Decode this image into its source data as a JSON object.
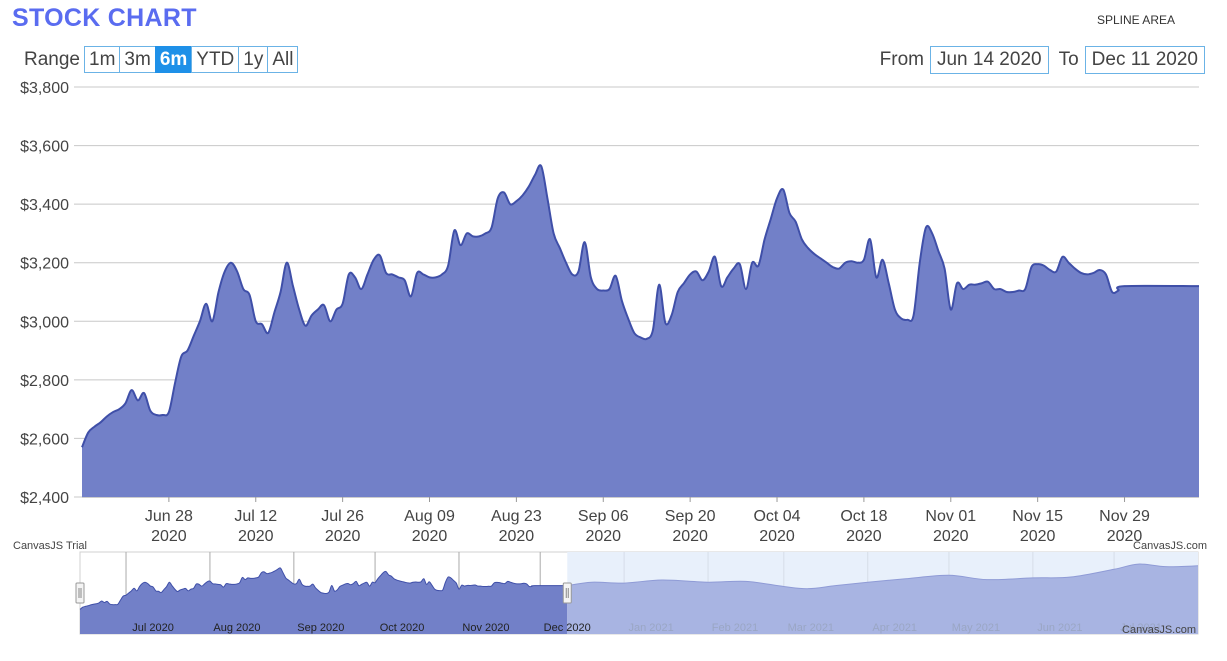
{
  "title": "STOCK CHART",
  "chart_type_label": "SPLINE AREA",
  "range": {
    "label": "Range",
    "buttons": [
      "1m",
      "3m",
      "6m",
      "YTD",
      "1y",
      "All"
    ],
    "active": "6m"
  },
  "date_range": {
    "from_label": "From",
    "from_value": "Jun 14 2020",
    "to_label": "To",
    "to_value": "Dec 11 2020"
  },
  "credits": {
    "trial": "CanvasJS Trial",
    "site": "CanvasJS.com"
  },
  "colors": {
    "title": "#5a6cf0",
    "area_fill": "#7280c8",
    "area_line": "#3f4fa8",
    "active_button": "#1e90e8",
    "button_border": "#6bb3e6",
    "navigator_fill": "#e8f0fb"
  },
  "chart_data": {
    "type": "area",
    "subtype": "spline",
    "title": "",
    "xlabel": "",
    "ylabel": "",
    "ylim": [
      2400,
      3800
    ],
    "xlim": [
      "2020-06-14",
      "2020-12-11"
    ],
    "y_ticks": [
      "$2,400",
      "$2,600",
      "$2,800",
      "$3,000",
      "$3,200",
      "$3,400",
      "$3,600",
      "$3,800"
    ],
    "y_tick_values": [
      2400,
      2600,
      2800,
      3000,
      3200,
      3400,
      3600,
      3800
    ],
    "x_ticks": [
      {
        "date": "2020-06-28",
        "label": "Jun 28",
        "year": "2020"
      },
      {
        "date": "2020-07-12",
        "label": "Jul 12",
        "year": "2020"
      },
      {
        "date": "2020-07-26",
        "label": "Jul 26",
        "year": "2020"
      },
      {
        "date": "2020-08-09",
        "label": "Aug 09",
        "year": "2020"
      },
      {
        "date": "2020-08-23",
        "label": "Aug 23",
        "year": "2020"
      },
      {
        "date": "2020-09-06",
        "label": "Sep 06",
        "year": "2020"
      },
      {
        "date": "2020-09-20",
        "label": "Sep 20",
        "year": "2020"
      },
      {
        "date": "2020-10-04",
        "label": "Oct 04",
        "year": "2020"
      },
      {
        "date": "2020-10-18",
        "label": "Oct 18",
        "year": "2020"
      },
      {
        "date": "2020-11-01",
        "label": "Nov 01",
        "year": "2020"
      },
      {
        "date": "2020-11-15",
        "label": "Nov 15",
        "year": "2020"
      },
      {
        "date": "2020-11-29",
        "label": "Nov 29",
        "year": "2020"
      }
    ],
    "grid": true,
    "series": [
      {
        "points": [
          [
            "2020-06-14",
            2570
          ],
          [
            "2020-06-15",
            2620
          ],
          [
            "2020-06-16",
            2640
          ],
          [
            "2020-06-17",
            2655
          ],
          [
            "2020-06-18",
            2675
          ],
          [
            "2020-06-19",
            2690
          ],
          [
            "2020-06-20",
            2700
          ],
          [
            "2020-06-21",
            2720
          ],
          [
            "2020-06-22",
            2765
          ],
          [
            "2020-06-23",
            2730
          ],
          [
            "2020-06-24",
            2755
          ],
          [
            "2020-06-25",
            2695
          ],
          [
            "2020-06-26",
            2680
          ],
          [
            "2020-06-27",
            2680
          ],
          [
            "2020-06-28",
            2690
          ],
          [
            "2020-06-29",
            2790
          ],
          [
            "2020-06-30",
            2880
          ],
          [
            "2020-07-01",
            2900
          ],
          [
            "2020-07-02",
            2950
          ],
          [
            "2020-07-03",
            3000
          ],
          [
            "2020-07-04",
            3060
          ],
          [
            "2020-07-05",
            3000
          ],
          [
            "2020-07-06",
            3100
          ],
          [
            "2020-07-07",
            3170
          ],
          [
            "2020-07-08",
            3200
          ],
          [
            "2020-07-09",
            3170
          ],
          [
            "2020-07-10",
            3110
          ],
          [
            "2020-07-11",
            3090
          ],
          [
            "2020-07-12",
            3000
          ],
          [
            "2020-07-13",
            2990
          ],
          [
            "2020-07-14",
            2960
          ],
          [
            "2020-07-15",
            3030
          ],
          [
            "2020-07-16",
            3100
          ],
          [
            "2020-07-17",
            3200
          ],
          [
            "2020-07-18",
            3120
          ],
          [
            "2020-07-19",
            3040
          ],
          [
            "2020-07-20",
            2985
          ],
          [
            "2020-07-21",
            3020
          ],
          [
            "2020-07-22",
            3040
          ],
          [
            "2020-07-23",
            3055
          ],
          [
            "2020-07-24",
            3000
          ],
          [
            "2020-07-25",
            3040
          ],
          [
            "2020-07-26",
            3060
          ],
          [
            "2020-07-27",
            3160
          ],
          [
            "2020-07-28",
            3150
          ],
          [
            "2020-07-29",
            3110
          ],
          [
            "2020-07-30",
            3160
          ],
          [
            "2020-07-31",
            3210
          ],
          [
            "2020-08-01",
            3225
          ],
          [
            "2020-08-02",
            3165
          ],
          [
            "2020-08-03",
            3160
          ],
          [
            "2020-08-04",
            3150
          ],
          [
            "2020-08-05",
            3140
          ],
          [
            "2020-08-06",
            3085
          ],
          [
            "2020-08-07",
            3165
          ],
          [
            "2020-08-08",
            3160
          ],
          [
            "2020-08-09",
            3150
          ],
          [
            "2020-08-10",
            3150
          ],
          [
            "2020-08-11",
            3160
          ],
          [
            "2020-08-12",
            3190
          ],
          [
            "2020-08-13",
            3310
          ],
          [
            "2020-08-14",
            3260
          ],
          [
            "2020-08-15",
            3300
          ],
          [
            "2020-08-16",
            3290
          ],
          [
            "2020-08-17",
            3290
          ],
          [
            "2020-08-18",
            3300
          ],
          [
            "2020-08-19",
            3320
          ],
          [
            "2020-08-20",
            3420
          ],
          [
            "2020-08-21",
            3440
          ],
          [
            "2020-08-22",
            3400
          ],
          [
            "2020-08-23",
            3410
          ],
          [
            "2020-08-24",
            3430
          ],
          [
            "2020-08-25",
            3460
          ],
          [
            "2020-08-26",
            3500
          ],
          [
            "2020-08-27",
            3530
          ],
          [
            "2020-08-28",
            3420
          ],
          [
            "2020-08-29",
            3300
          ],
          [
            "2020-08-30",
            3250
          ],
          [
            "2020-08-31",
            3200
          ],
          [
            "2020-09-01",
            3160
          ],
          [
            "2020-09-02",
            3170
          ],
          [
            "2020-09-03",
            3270
          ],
          [
            "2020-09-04",
            3150
          ],
          [
            "2020-09-05",
            3110
          ],
          [
            "2020-09-06",
            3105
          ],
          [
            "2020-09-07",
            3110
          ],
          [
            "2020-09-08",
            3155
          ],
          [
            "2020-09-09",
            3070
          ],
          [
            "2020-09-10",
            3010
          ],
          [
            "2020-09-11",
            2960
          ],
          [
            "2020-09-12",
            2945
          ],
          [
            "2020-09-13",
            2940
          ],
          [
            "2020-09-14",
            2970
          ],
          [
            "2020-09-15",
            3125
          ],
          [
            "2020-09-16",
            2995
          ],
          [
            "2020-09-17",
            3020
          ],
          [
            "2020-09-18",
            3100
          ],
          [
            "2020-09-19",
            3130
          ],
          [
            "2020-09-20",
            3160
          ],
          [
            "2020-09-21",
            3170
          ],
          [
            "2020-09-22",
            3140
          ],
          [
            "2020-09-23",
            3170
          ],
          [
            "2020-09-24",
            3220
          ],
          [
            "2020-09-25",
            3120
          ],
          [
            "2020-09-26",
            3150
          ],
          [
            "2020-09-27",
            3180
          ],
          [
            "2020-09-28",
            3195
          ],
          [
            "2020-09-29",
            3110
          ],
          [
            "2020-09-30",
            3200
          ],
          [
            "2020-10-01",
            3190
          ],
          [
            "2020-10-02",
            3280
          ],
          [
            "2020-10-03",
            3350
          ],
          [
            "2020-10-04",
            3420
          ],
          [
            "2020-10-05",
            3450
          ],
          [
            "2020-10-06",
            3370
          ],
          [
            "2020-10-07",
            3340
          ],
          [
            "2020-10-08",
            3280
          ],
          [
            "2020-10-09",
            3250
          ],
          [
            "2020-10-10",
            3230
          ],
          [
            "2020-10-11",
            3215
          ],
          [
            "2020-10-12",
            3200
          ],
          [
            "2020-10-13",
            3185
          ],
          [
            "2020-10-14",
            3180
          ],
          [
            "2020-10-15",
            3200
          ],
          [
            "2020-10-16",
            3205
          ],
          [
            "2020-10-17",
            3200
          ],
          [
            "2020-10-18",
            3210
          ],
          [
            "2020-10-19",
            3280
          ],
          [
            "2020-10-20",
            3150
          ],
          [
            "2020-10-21",
            3210
          ],
          [
            "2020-10-22",
            3130
          ],
          [
            "2020-10-23",
            3040
          ],
          [
            "2020-10-24",
            3010
          ],
          [
            "2020-10-25",
            3005
          ],
          [
            "2020-10-26",
            3020
          ],
          [
            "2020-10-27",
            3200
          ],
          [
            "2020-10-28",
            3320
          ],
          [
            "2020-10-29",
            3300
          ],
          [
            "2020-10-30",
            3240
          ],
          [
            "2020-10-31",
            3180
          ],
          [
            "2020-11-01",
            3040
          ],
          [
            "2020-11-02",
            3130
          ],
          [
            "2020-11-03",
            3110
          ],
          [
            "2020-11-04",
            3125
          ],
          [
            "2020-11-05",
            3125
          ],
          [
            "2020-11-06",
            3130
          ],
          [
            "2020-11-07",
            3135
          ],
          [
            "2020-11-08",
            3110
          ],
          [
            "2020-11-09",
            3110
          ],
          [
            "2020-11-10",
            3100
          ],
          [
            "2020-11-11",
            3100
          ],
          [
            "2020-11-12",
            3105
          ],
          [
            "2020-11-13",
            3110
          ],
          [
            "2020-11-14",
            3185
          ],
          [
            "2020-11-15",
            3195
          ],
          [
            "2020-11-16",
            3190
          ],
          [
            "2020-11-17",
            3175
          ],
          [
            "2020-11-18",
            3170
          ],
          [
            "2020-11-19",
            3220
          ],
          [
            "2020-11-20",
            3200
          ],
          [
            "2020-11-21",
            3180
          ],
          [
            "2020-11-22",
            3165
          ],
          [
            "2020-11-23",
            3160
          ],
          [
            "2020-11-24",
            3165
          ],
          [
            "2020-11-25",
            3175
          ],
          [
            "2020-11-26",
            3160
          ],
          [
            "2020-11-27",
            3100
          ],
          [
            "2020-11-28",
            3105
          ],
          [
            "2020-11-29",
            3120
          ]
        ]
      }
    ]
  },
  "navigator": {
    "labels": [
      "Jul 2020",
      "Aug 2020",
      "Sep 2020",
      "Oct 2020",
      "Nov 2020",
      "Dec 2020",
      "Jan 2021",
      "Feb 2021",
      "Mar 2021",
      "Apr 2021",
      "May 2021",
      "Jun 2021",
      "Jul 2021"
    ],
    "label_dates": [
      "2020-07-01",
      "2020-08-01",
      "2020-09-01",
      "2020-10-01",
      "2020-11-01",
      "2020-12-01",
      "2021-01-01",
      "2021-02-01",
      "2021-03-01",
      "2021-04-01",
      "2021-05-01",
      "2021-06-01",
      "2021-07-01"
    ],
    "xlim": [
      "2020-06-14",
      "2021-08-01"
    ],
    "selected": [
      "2020-06-14",
      "2020-12-11"
    ],
    "ylim": [
      2000,
      3900
    ],
    "extra_points": [
      [
        "2020-12-11",
        3120
      ],
      [
        "2020-12-20",
        3200
      ],
      [
        "2021-01-01",
        3180
      ],
      [
        "2021-01-15",
        3250
      ],
      [
        "2021-02-01",
        3200
      ],
      [
        "2021-02-15",
        3220
      ],
      [
        "2021-03-01",
        3100
      ],
      [
        "2021-03-10",
        3050
      ],
      [
        "2021-03-20",
        3120
      ],
      [
        "2021-04-01",
        3200
      ],
      [
        "2021-04-15",
        3280
      ],
      [
        "2021-05-01",
        3360
      ],
      [
        "2021-05-15",
        3260
      ],
      [
        "2021-06-01",
        3300
      ],
      [
        "2021-06-15",
        3320
      ],
      [
        "2021-07-01",
        3500
      ],
      [
        "2021-07-10",
        3620
      ],
      [
        "2021-07-20",
        3560
      ],
      [
        "2021-08-01",
        3580
      ]
    ]
  }
}
